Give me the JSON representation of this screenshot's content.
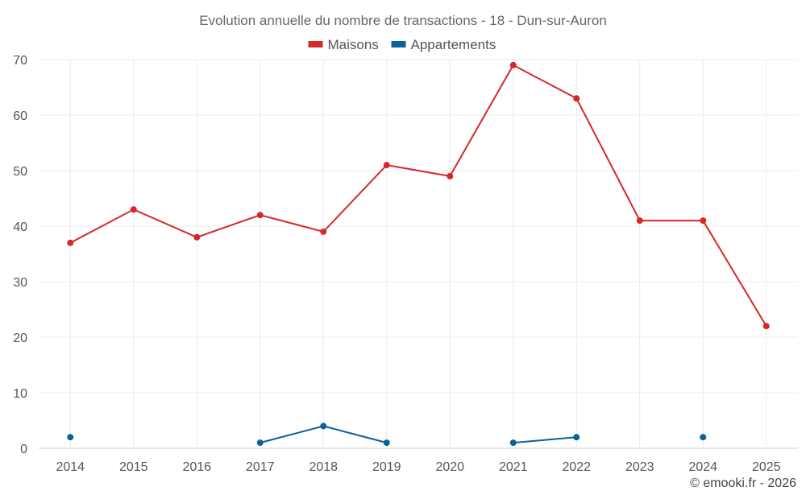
{
  "chart_data": {
    "type": "line",
    "title": "Evolution annuelle du nombre de transactions - 18 - Dun-sur-Auron",
    "categories": [
      "2014",
      "2015",
      "2016",
      "2017",
      "2018",
      "2019",
      "2020",
      "2021",
      "2022",
      "2023",
      "2024",
      "2025"
    ],
    "ylim": [
      0,
      70
    ],
    "yticks": [
      0,
      10,
      20,
      30,
      40,
      50,
      60,
      70
    ],
    "grid": true,
    "legend_position": "top-center",
    "series": [
      {
        "name": "Maisons",
        "color": "#d62828",
        "values": [
          37,
          43,
          38,
          42,
          39,
          51,
          49,
          69,
          63,
          41,
          41,
          22
        ]
      },
      {
        "name": "Appartements",
        "color": "#0d6199",
        "values": [
          2,
          null,
          null,
          1,
          4,
          1,
          null,
          1,
          2,
          null,
          2,
          null
        ]
      }
    ]
  },
  "credit": "© emooki.fr - 2026"
}
